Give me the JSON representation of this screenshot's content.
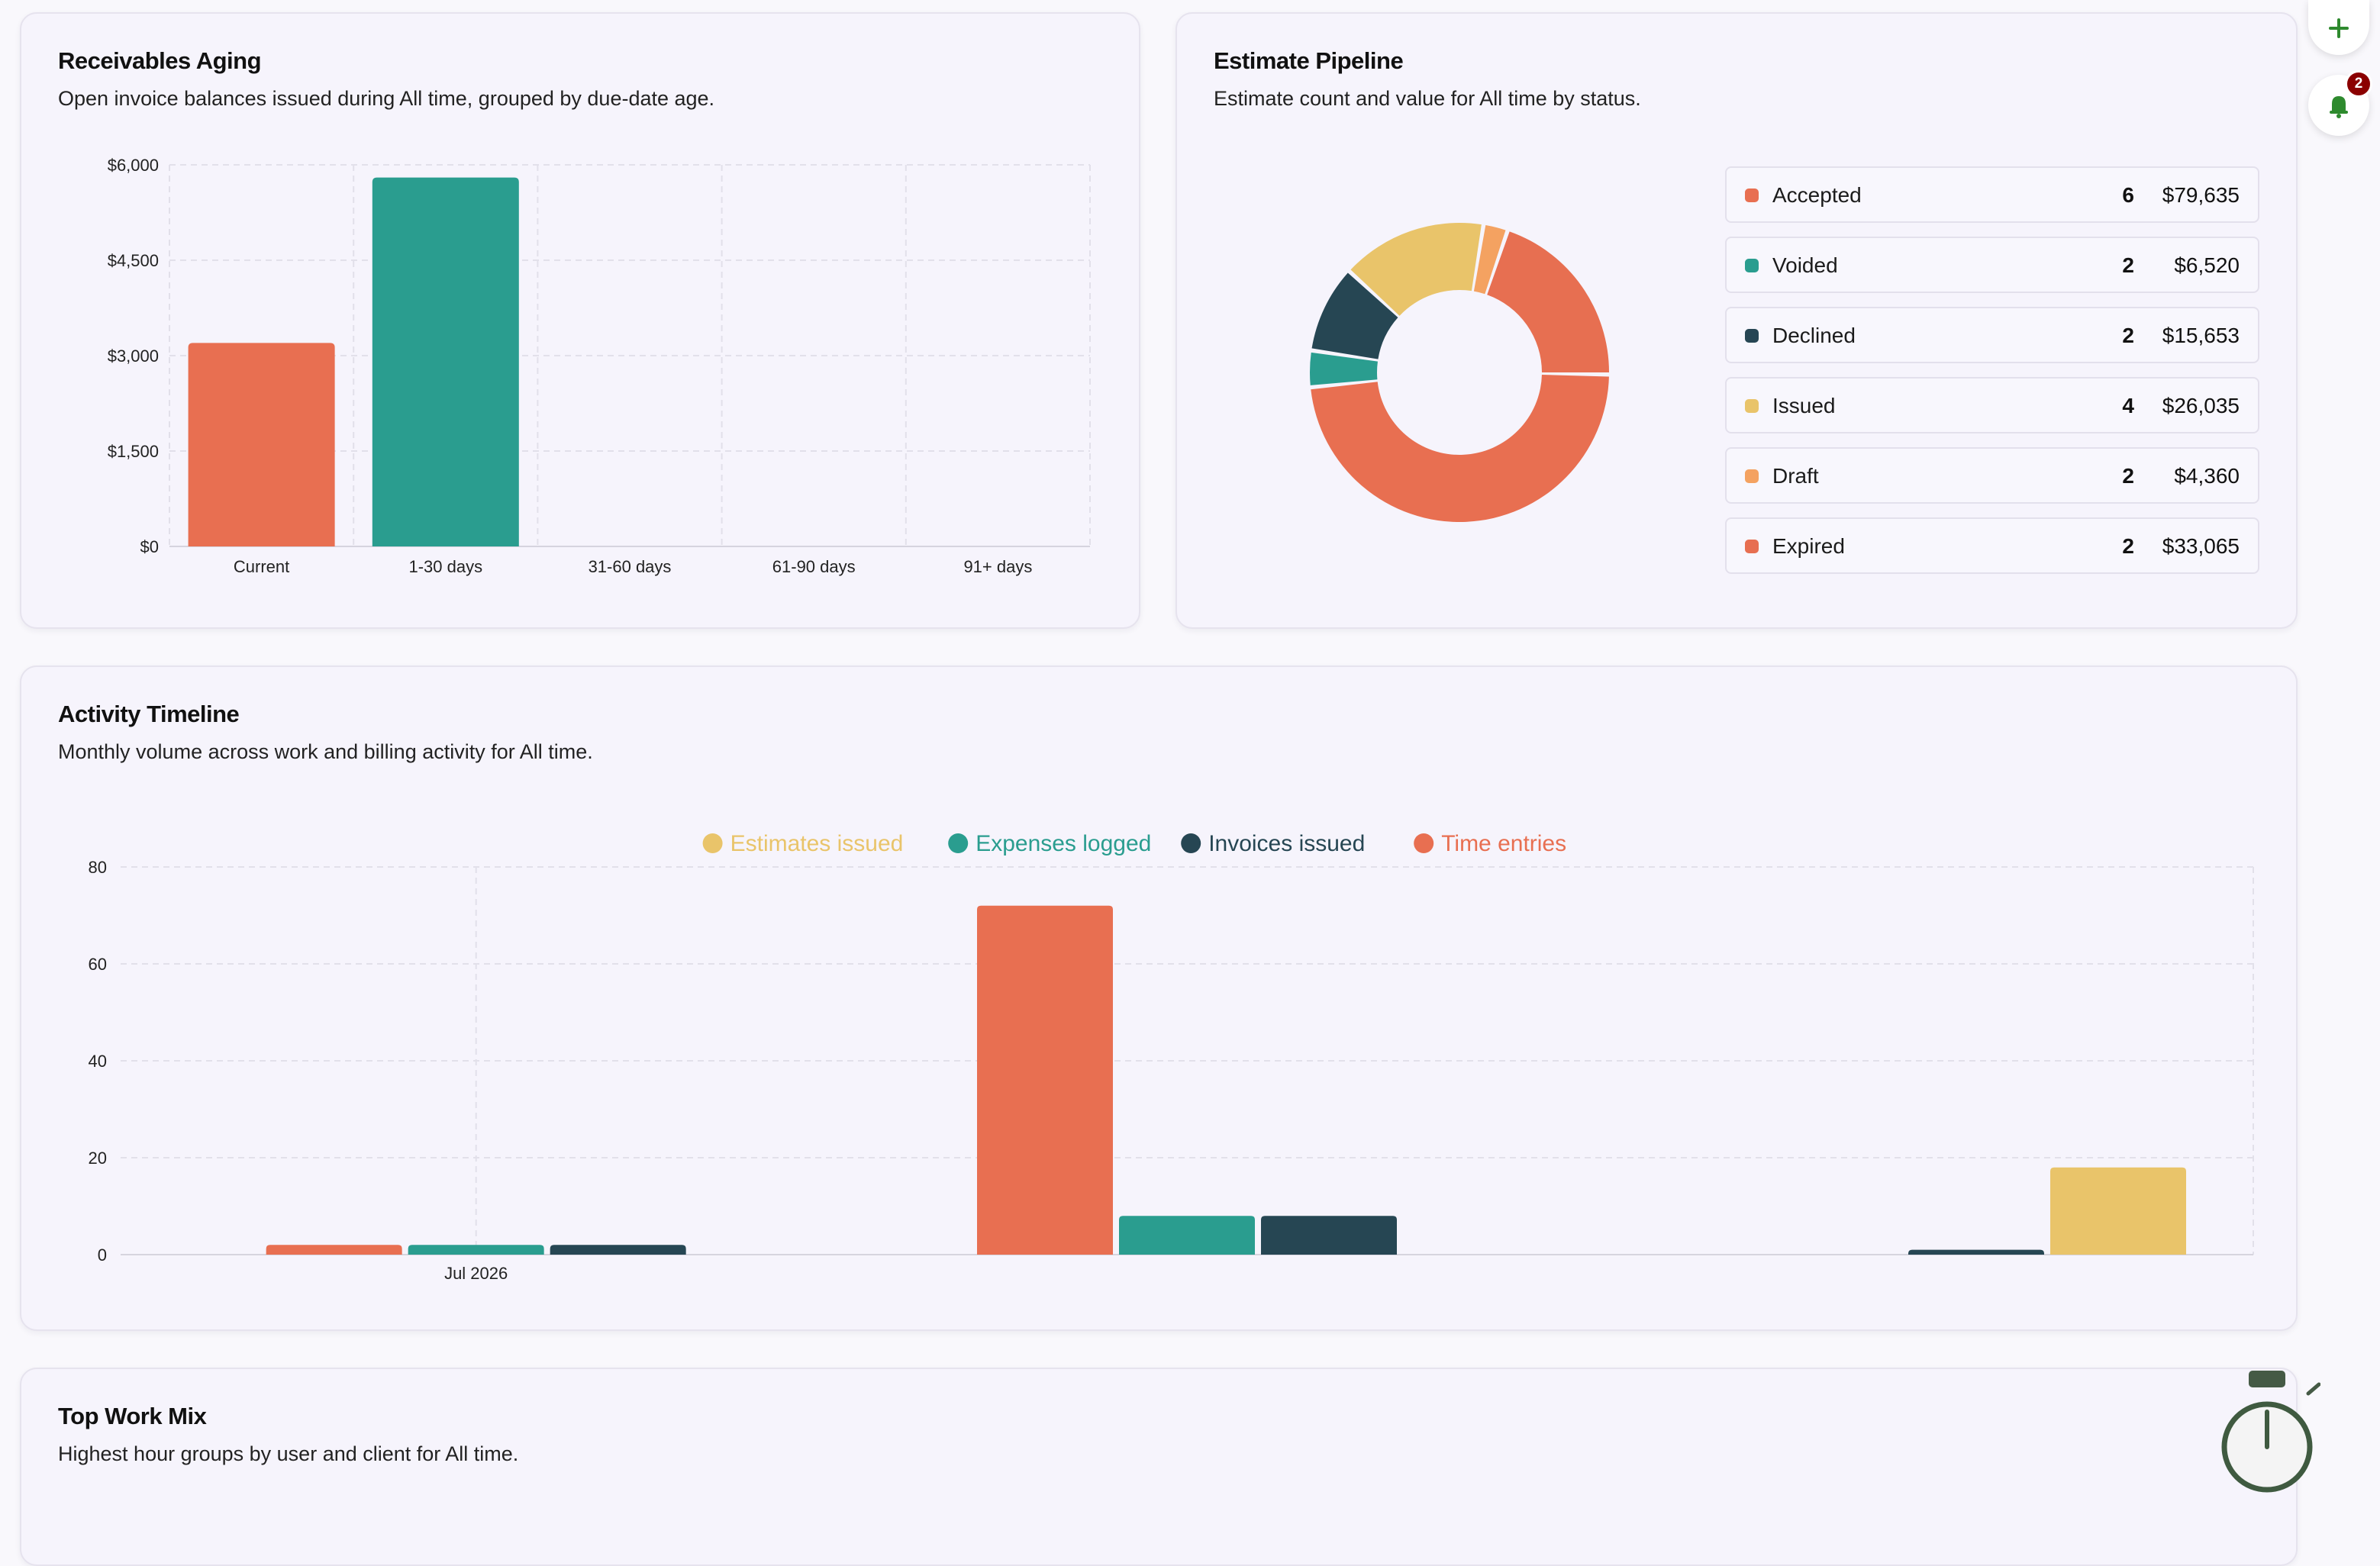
{
  "receivables": {
    "title": "Receivables Aging",
    "subtitle": "Open invoice balances issued during All time, grouped by due-date age."
  },
  "pipeline": {
    "title": "Estimate Pipeline",
    "subtitle": "Estimate count and value for All time by status.",
    "items": [
      {
        "label": "Accepted",
        "count": "6",
        "value": "$79,635",
        "color": "#e86f51"
      },
      {
        "label": "Voided",
        "count": "2",
        "value": "$6,520",
        "color": "#2a9d8f"
      },
      {
        "label": "Declined",
        "count": "2",
        "value": "$15,653",
        "color": "#264653"
      },
      {
        "label": "Issued",
        "count": "4",
        "value": "$26,035",
        "color": "#e9c46a"
      },
      {
        "label": "Draft",
        "count": "2",
        "value": "$4,360",
        "color": "#f4a261"
      },
      {
        "label": "Expired",
        "count": "2",
        "value": "$33,065",
        "color": "#e76f51"
      }
    ]
  },
  "timeline": {
    "title": "Activity Timeline",
    "subtitle": "Monthly volume across work and billing activity for All time."
  },
  "workmix": {
    "title": "Top Work Mix",
    "subtitle": "Highest hour groups by user and client for All time."
  },
  "notifications": {
    "count": "2"
  },
  "icons": {
    "add": "plus-icon",
    "notify": "bell-icon",
    "timer": "stopwatch-icon"
  },
  "chart_data": [
    {
      "type": "bar",
      "categories": [
        "Current",
        "1-30 days",
        "31-60 days",
        "61-90 days",
        "91+ days"
      ],
      "values": [
        3200,
        5800,
        0,
        0,
        0
      ],
      "colors": [
        "#e86f51",
        "#2a9d8f",
        "#e86f51",
        "#e86f51",
        "#e86f51"
      ],
      "ylim": [
        0,
        6000
      ],
      "yticks": [
        0,
        1500,
        3000,
        4500,
        6000
      ],
      "ytick_labels": [
        "$0",
        "$1,500",
        "$3,000",
        "$4,500",
        "$6,000"
      ],
      "grid": true
    },
    {
      "type": "pie",
      "donut": true,
      "labels": [
        "Accepted",
        "Voided",
        "Declined",
        "Issued",
        "Draft",
        "Expired"
      ],
      "values": [
        79635,
        6520,
        15653,
        26035,
        4360,
        33065
      ],
      "colors": [
        "#e86f51",
        "#2a9d8f",
        "#264653",
        "#e9c46a",
        "#f4a261",
        "#e76f51"
      ]
    },
    {
      "type": "bar",
      "categories": [
        "Jul 2026",
        "",
        ""
      ],
      "series": [
        {
          "name": "Time entries",
          "values": [
            2,
            72,
            0
          ],
          "color": "#e86f51"
        },
        {
          "name": "Expenses logged",
          "values": [
            2,
            8,
            0
          ],
          "color": "#2a9d8f"
        },
        {
          "name": "Invoices issued",
          "values": [
            2,
            8,
            1
          ],
          "color": "#264653"
        },
        {
          "name": "Estimates issued",
          "values": [
            0,
            0,
            18
          ],
          "color": "#e9c46a"
        }
      ],
      "legend_order": [
        "Estimates issued",
        "Expenses logged",
        "Invoices issued",
        "Time entries"
      ],
      "legend_position": "top-center",
      "ylim": [
        0,
        80
      ],
      "yticks": [
        0,
        20,
        40,
        60,
        80
      ],
      "grid": true
    }
  ]
}
